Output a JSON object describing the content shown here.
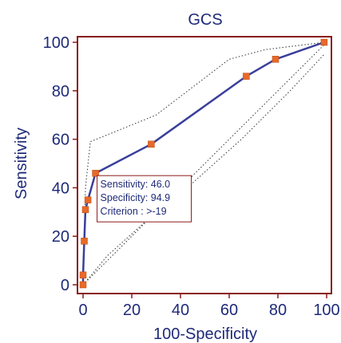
{
  "chart_data": {
    "type": "line",
    "title": "GCS",
    "xlabel": "100-Specificity",
    "ylabel": "Sensitivity",
    "xlim": [
      0,
      100
    ],
    "ylim": [
      0,
      100
    ],
    "x_ticks": [
      0,
      20,
      40,
      60,
      80,
      100
    ],
    "y_ticks": [
      0,
      20,
      40,
      60,
      80,
      100
    ],
    "grid": false,
    "series": [
      {
        "role": "roc-curve",
        "color": "#3a3f9a",
        "marker_color": "#e8692a",
        "x": [
          0,
          0,
          0.5,
          1,
          2,
          5.1,
          28,
          67,
          79,
          99
        ],
        "y": [
          0,
          4,
          18,
          31,
          35,
          46,
          58,
          86,
          93,
          100
        ]
      },
      {
        "role": "upper-confidence-bound",
        "style": "dotted",
        "color": "#333333",
        "x": [
          0,
          1,
          3,
          30,
          60,
          75,
          99
        ],
        "y": [
          0,
          40,
          59,
          70,
          93,
          97,
          100
        ]
      },
      {
        "role": "lower-confidence-bound",
        "style": "dotted",
        "color": "#333333",
        "x": [
          0,
          5,
          10,
          30,
          45,
          65,
          85,
          99
        ],
        "y": [
          0,
          6,
          12,
          30,
          42,
          60,
          80,
          95
        ]
      },
      {
        "role": "diagonal-reference",
        "style": "dotted",
        "color": "#333333",
        "x": [
          0,
          100
        ],
        "y": [
          0,
          100
        ]
      }
    ],
    "annotation": {
      "lines": [
        "Sensitivity: 46.0",
        "Specificity: 94.9",
        "Criterion : >-19"
      ],
      "anchor_point": [
        5.1,
        46.0
      ]
    },
    "colors": {
      "frame": "#8b1a1a",
      "text": "#1f2a78",
      "box_border": "#8b1a1a"
    }
  }
}
